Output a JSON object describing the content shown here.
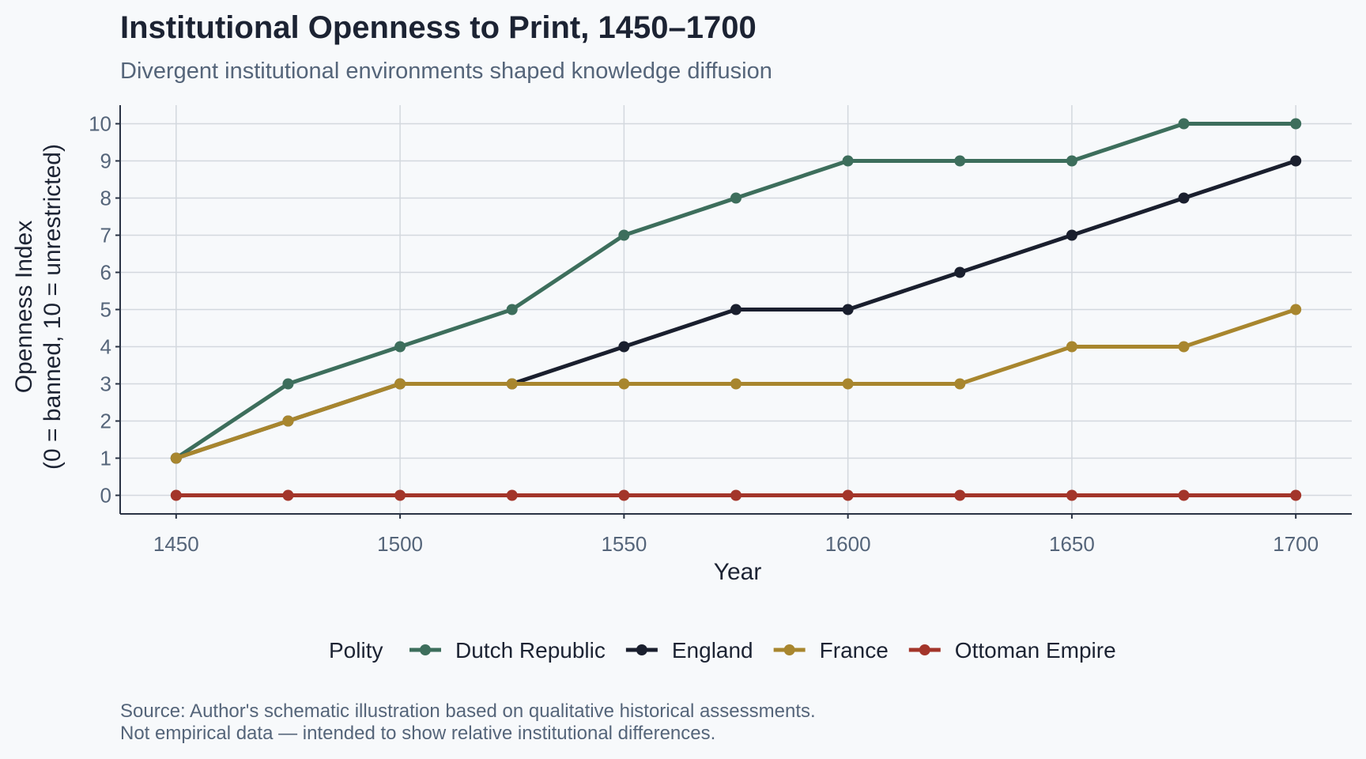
{
  "chart_data": {
    "type": "line",
    "title": "Institutional Openness to Print, 1450–1700",
    "subtitle": "Divergent institutional environments shaped knowledge diffusion",
    "xlabel": "Year",
    "ylabel_line1": "Openness Index",
    "ylabel_line2": "(0 = banned, 10 = unrestricted)",
    "x": [
      1450,
      1475,
      1500,
      1525,
      1550,
      1575,
      1600,
      1625,
      1650,
      1675,
      1700
    ],
    "xlim": [
      1437.5,
      1712.5
    ],
    "ylim": [
      -0.5,
      10.5
    ],
    "xticks": [
      1450,
      1500,
      1550,
      1600,
      1650,
      1700
    ],
    "yticks": [
      0,
      1,
      2,
      3,
      4,
      5,
      6,
      7,
      8,
      9,
      10
    ],
    "grid": true,
    "legend_title": "Polity",
    "legend_position": "bottom",
    "series": [
      {
        "name": "Dutch Republic",
        "color": "#3d6e5c",
        "values": [
          1,
          3,
          4,
          5,
          7,
          8,
          9,
          9,
          9,
          10,
          10
        ]
      },
      {
        "name": "England",
        "color": "#1a1f2e",
        "values": [
          1,
          2,
          3,
          3,
          4,
          5,
          5,
          6,
          7,
          8,
          9
        ]
      },
      {
        "name": "France",
        "color": "#a8862e",
        "values": [
          1,
          2,
          3,
          3,
          3,
          3,
          3,
          3,
          4,
          4,
          5
        ]
      },
      {
        "name": "Ottoman Empire",
        "color": "#a3352a",
        "values": [
          0,
          0,
          0,
          0,
          0,
          0,
          0,
          0,
          0,
          0,
          0
        ]
      }
    ],
    "caption_line1": "Source: Author's schematic illustration based on qualitative historical assessments.",
    "caption_line2": "Not empirical data — intended to show relative institutional differences."
  }
}
